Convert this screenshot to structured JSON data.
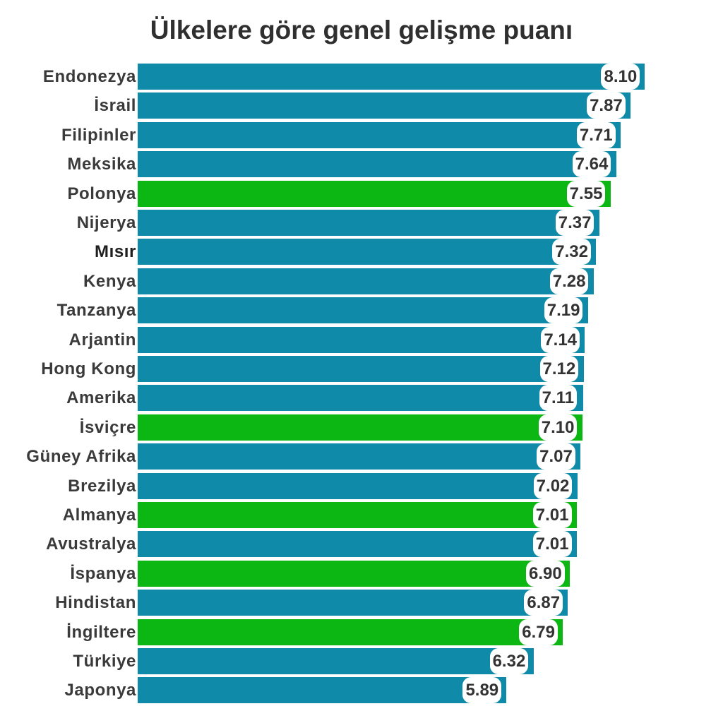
{
  "title": "Ülkelere göre genel gelişme puanı",
  "colors": {
    "default": "#0f8aa8",
    "highlight": "#0cb714",
    "text": "#333333"
  },
  "chart_data": {
    "type": "bar",
    "orientation": "horizontal",
    "title": "Ülkelere göre genel gelişme puanı",
    "xlabel": "",
    "ylabel": "",
    "grid": false,
    "legend": null,
    "xlim": [
      0,
      8.1
    ],
    "categories": [
      "Endonezya",
      "İsrail",
      "Filipinler",
      "Meksika",
      "Polonya",
      "Nijerya",
      "Mısır",
      "Kenya",
      "Tanzanya",
      "Arjantin",
      "Hong Kong",
      "Amerika",
      "İsviçre",
      "Güney Afrika",
      "Brezilya",
      "Almanya",
      "Avustralya",
      "İspanya",
      "Hindistan",
      "İngiltere",
      "Türkiye",
      "Japonya"
    ],
    "values": [
      8.1,
      7.87,
      7.71,
      7.64,
      7.55,
      7.37,
      7.32,
      7.28,
      7.19,
      7.14,
      7.12,
      7.11,
      7.1,
      7.07,
      7.02,
      7.01,
      7.01,
      6.9,
      6.87,
      6.79,
      6.32,
      5.89
    ],
    "value_labels": [
      "8.10",
      "7.87",
      "7.71",
      "7.64",
      "7.55",
      "7.37",
      "7.32",
      "7.28",
      "7.19",
      "7.14",
      "7.12",
      "7.11",
      "7.10",
      "7.07",
      "7.02",
      "7.01",
      "7.01",
      "6.90",
      "6.87",
      "6.79",
      "6.32",
      "5.89"
    ],
    "highlighted": [
      "Polonya",
      "İsviçre",
      "Almanya",
      "İspanya",
      "İngiltere"
    ],
    "bar_colors": [
      "blue",
      "blue",
      "blue",
      "blue",
      "green",
      "blue",
      "blue",
      "blue",
      "blue",
      "blue",
      "blue",
      "blue",
      "green",
      "blue",
      "blue",
      "green",
      "blue",
      "green",
      "blue",
      "green",
      "blue",
      "blue"
    ]
  }
}
